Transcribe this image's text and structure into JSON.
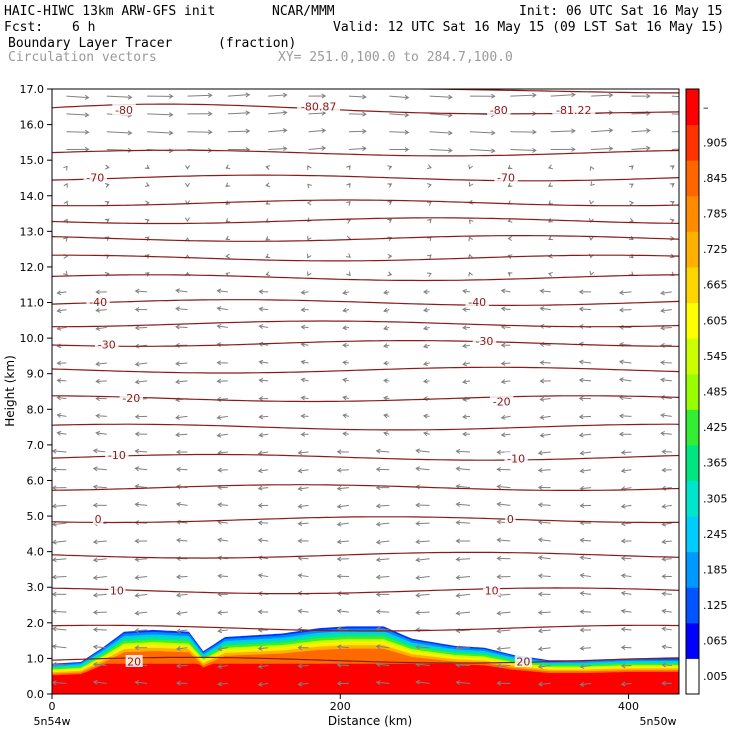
{
  "header": {
    "model": "HAIC-HIWC 13km ARW-GFS init",
    "org": "NCAR/MMM",
    "init": "Init: 06 UTC Sat 16 May 15",
    "fcst_label": "Fcst:",
    "fcst_value": "6 h",
    "valid": "Valid: 12 UTC Sat 16 May 15 (09 LST Sat 16 May 15)",
    "field": "Boundary Layer Tracer",
    "units": "(fraction)",
    "vectors": "Circulation vectors",
    "xy": "XY= 251.0,100.0 to 284.7,100.0"
  },
  "colors": {
    "contour": "#8b1a1a",
    "vector": "#808080",
    "colorbar": [
      "#ffffff",
      "#0000ff",
      "#0055ff",
      "#0099ff",
      "#00ccff",
      "#00e5cc",
      "#00e680",
      "#33ee33",
      "#99ff00",
      "#ccff00",
      "#ffff00",
      "#ffd700",
      "#ffb000",
      "#ff8c00",
      "#ff6600",
      "#ff3300",
      "#ff0000"
    ]
  },
  "chart_data": {
    "type": "heatmap",
    "xlabel": "Distance (km)",
    "ylabel": "Height (km)",
    "xlim": [
      0,
      435
    ],
    "ylim": [
      0,
      17
    ],
    "x_ticks": [
      "0",
      "200",
      "400"
    ],
    "y_ticks": [
      "0.0",
      "1.0",
      "2.0",
      "3.0",
      "4.0",
      "5.0",
      "6.0",
      "7.0",
      "8.0",
      "9.0",
      "10.0",
      "11.0",
      "12.0",
      "13.0",
      "14.0",
      "15.0",
      "16.0",
      "17.0"
    ],
    "x_endpoint_labels": [
      "5n54w",
      "5n50w"
    ],
    "colorbar_ticks": [
      ".005",
      ".065",
      ".125",
      ".185",
      ".245",
      ".305",
      ".365",
      ".425",
      ".485",
      ".545",
      ".605",
      ".665",
      ".725",
      ".785",
      ".845",
      ".905",
      "–"
    ],
    "tracer_top_km": [
      [
        0,
        0.85
      ],
      [
        20,
        0.9
      ],
      [
        35,
        1.3
      ],
      [
        50,
        1.75
      ],
      [
        70,
        1.8
      ],
      [
        95,
        1.75
      ],
      [
        105,
        1.2
      ],
      [
        120,
        1.6
      ],
      [
        160,
        1.7
      ],
      [
        185,
        1.85
      ],
      [
        205,
        1.9
      ],
      [
        230,
        1.9
      ],
      [
        250,
        1.55
      ],
      [
        280,
        1.35
      ],
      [
        300,
        1.3
      ],
      [
        320,
        1.1
      ],
      [
        345,
        0.95
      ],
      [
        370,
        0.95
      ],
      [
        400,
        1.0
      ],
      [
        435,
        1.0
      ]
    ],
    "isotherms": [
      {
        "label": "-80.87",
        "value": -80.87,
        "x": 185,
        "y": 16.5
      },
      {
        "label": "-81.22",
        "value": -81.22,
        "x": 362,
        "y": 16.4
      },
      {
        "label": "-80",
        "value": -80,
        "x": 50,
        "y": 16.4
      },
      {
        "label": "-80",
        "value": -80,
        "x": 310,
        "y": 16.4
      },
      {
        "label": "-70",
        "value": -70,
        "x": 30,
        "y": 14.5
      },
      {
        "label": "-70",
        "value": -70,
        "x": 315,
        "y": 14.5
      },
      {
        "label": "-40",
        "value": -40,
        "x": 32,
        "y": 11.0
      },
      {
        "label": "-40",
        "value": -40,
        "x": 295,
        "y": 11.0
      },
      {
        "label": "-30",
        "value": -30,
        "x": 38,
        "y": 9.8
      },
      {
        "label": "-30",
        "value": -30,
        "x": 300,
        "y": 9.9
      },
      {
        "label": "-20",
        "value": -20,
        "x": 55,
        "y": 8.3
      },
      {
        "label": "-20",
        "value": -20,
        "x": 312,
        "y": 8.2
      },
      {
        "label": "-10",
        "value": -10,
        "x": 45,
        "y": 6.7
      },
      {
        "label": "-10",
        "value": -10,
        "x": 322,
        "y": 6.6
      },
      {
        "label": "0",
        "value": 0,
        "x": 32,
        "y": 4.9
      },
      {
        "label": "0",
        "value": 0,
        "x": 318,
        "y": 4.9
      },
      {
        "label": "10",
        "value": 10,
        "x": 45,
        "y": 2.9
      },
      {
        "label": "10",
        "value": 10,
        "x": 305,
        "y": 2.9
      },
      {
        "label": "20",
        "value": 20,
        "x": 57,
        "y": 0.9
      },
      {
        "label": "20",
        "value": 20,
        "x": 327,
        "y": 0.9
      }
    ],
    "contour_levels_km": [
      0.95,
      1.85,
      2.9,
      3.9,
      4.9,
      5.8,
      6.65,
      7.5,
      8.3,
      9.1,
      9.85,
      10.4,
      11.0,
      11.7,
      12.25,
      12.8,
      13.3,
      13.8,
      14.5,
      15.2,
      16.4,
      17.0
    ],
    "grid": false,
    "legend": "colorbar-right"
  }
}
